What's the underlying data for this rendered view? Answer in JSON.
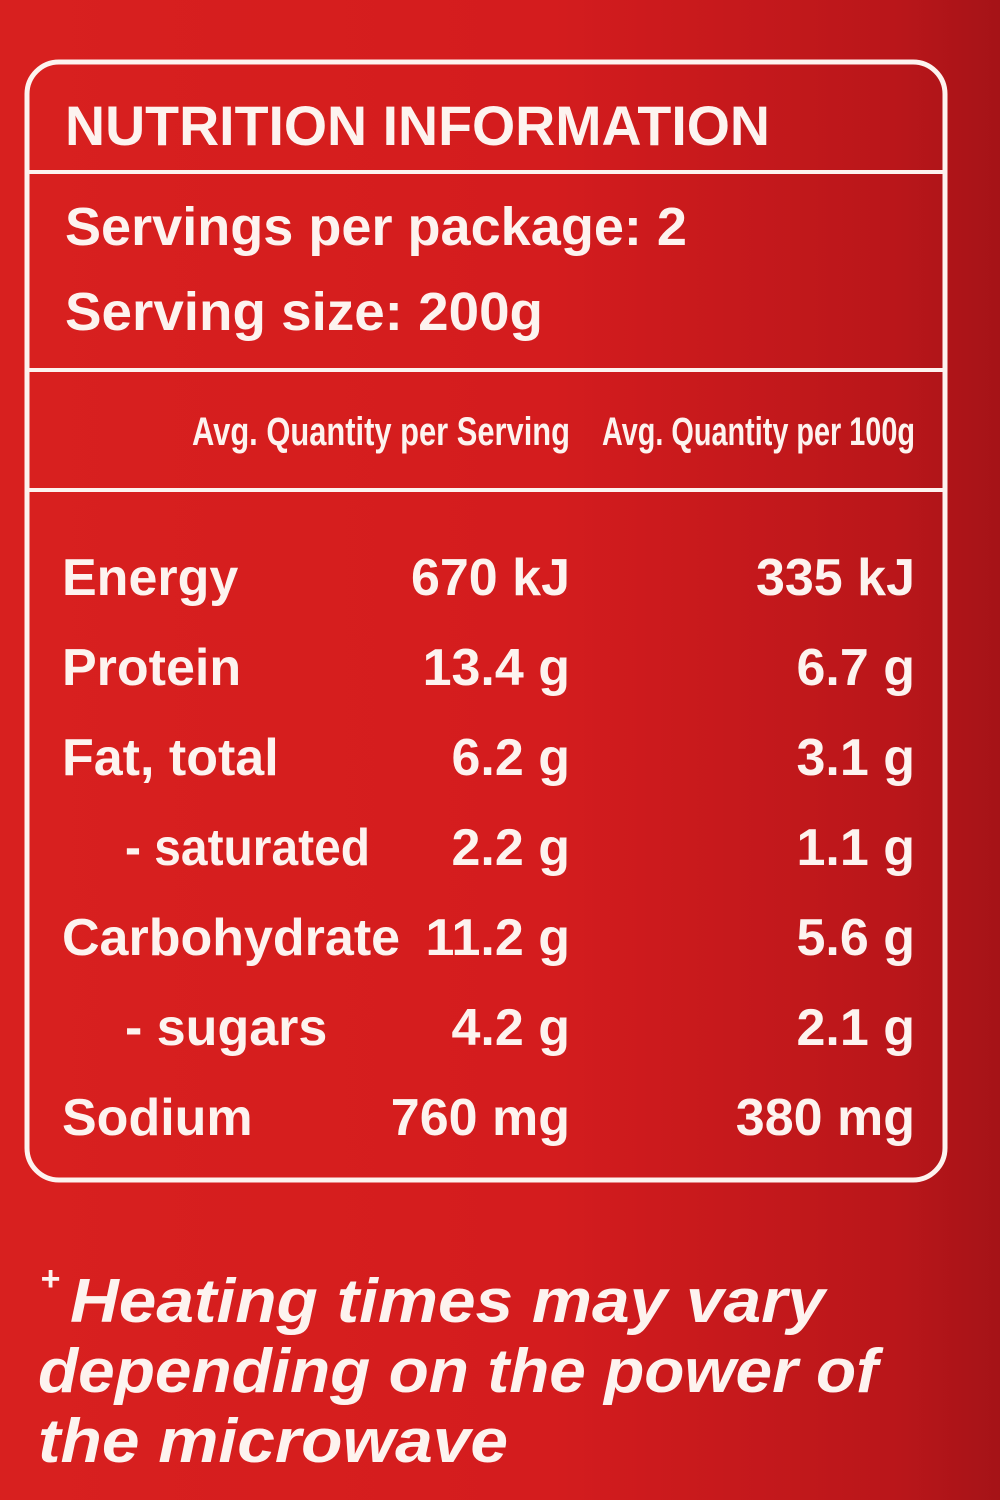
{
  "title": "NUTRITION INFORMATION",
  "servings": [
    "Servings per package: 2",
    "Serving size: 200g"
  ],
  "table": {
    "headers": [
      "Avg. Quantity per Serving",
      "Avg. Quantity per 100g"
    ],
    "rows": [
      [
        "Energy",
        "670 kJ",
        "335 kJ"
      ],
      [
        "Protein",
        "13.4 g",
        "6.7 g"
      ],
      [
        "Fat, total",
        "6.2 g",
        "3.1 g"
      ],
      [
        "- saturated",
        "2.2 g",
        "1.1 g"
      ],
      [
        "Carbohydrate",
        "11.2 g",
        "5.6 g"
      ],
      [
        "- sugars",
        "4.2 g",
        "2.1 g"
      ],
      [
        "Sodium",
        "760 mg",
        "380 mg"
      ]
    ]
  },
  "footnote": {
    "mark": "+",
    "lines": [
      "Heating times may vary",
      "depending on the power of",
      "the microwave"
    ]
  }
}
